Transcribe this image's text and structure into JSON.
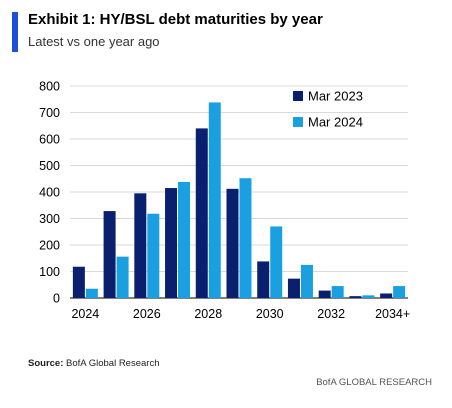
{
  "header": {
    "title": "Exhibit 1: HY/BSL debt maturities by year",
    "subtitle": "Latest vs one year ago"
  },
  "source": {
    "label": "Source:",
    "text": " BofA Global Research"
  },
  "footer": {
    "text": "BofA GLOBAL RESEARCH"
  },
  "colors": {
    "accent": "#1f4fd8",
    "series_dark": "#0a1f6e",
    "series_light": "#1aa0e0",
    "grid": "#d9d9d9"
  },
  "chart_data": {
    "type": "bar",
    "categories": [
      "2024",
      "2025",
      "2026",
      "2027",
      "2028",
      "2029",
      "2030",
      "2031",
      "2032",
      "2033",
      "2034+"
    ],
    "x_tick_labels": [
      "2024",
      "",
      "2026",
      "",
      "2028",
      "",
      "2030",
      "",
      "2032",
      "",
      "2034+"
    ],
    "series": [
      {
        "name": "Mar 2023",
        "color": "#0a1f6e",
        "values": [
          118,
          328,
          395,
          415,
          640,
          412,
          138,
          73,
          28,
          7,
          17
        ]
      },
      {
        "name": "Mar 2024",
        "color": "#1aa0e0",
        "values": [
          35,
          156,
          318,
          438,
          738,
          452,
          270,
          125,
          45,
          10,
          45
        ]
      }
    ],
    "ylim": [
      0,
      800
    ],
    "yticks": [
      0,
      100,
      200,
      300,
      400,
      500,
      600,
      700,
      800
    ],
    "xlabel": "",
    "ylabel": "",
    "grid": true,
    "legend": "top-right"
  }
}
